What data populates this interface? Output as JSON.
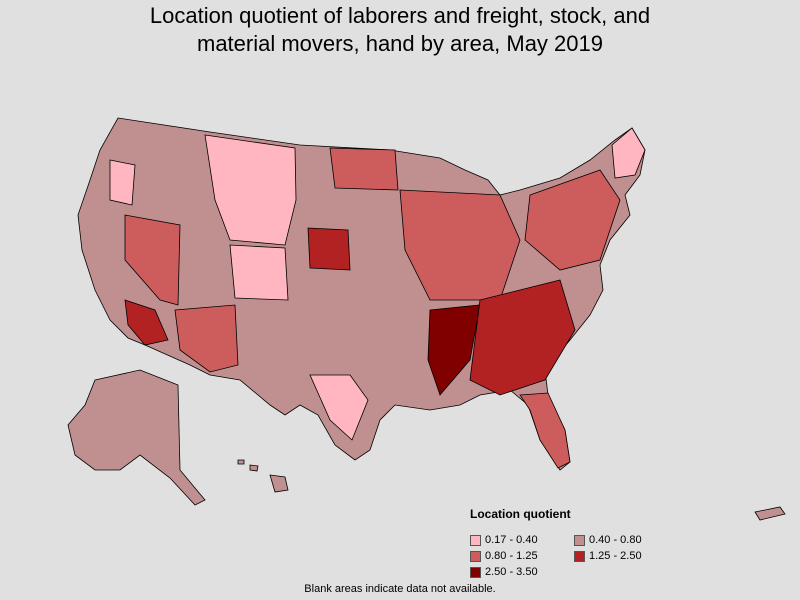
{
  "title_line1": "Location quotient of laborers and freight, stock, and",
  "title_line2": "material movers, hand by area, May 2019",
  "legend": {
    "title": "Location quotient",
    "items": [
      {
        "label": "0.17 - 0.40",
        "color": "#ffb6c1"
      },
      {
        "label": "0.40 - 0.80",
        "color": "#c09090"
      },
      {
        "label": "0.80 - 1.25",
        "color": "#cd5c5c"
      },
      {
        "label": "1.25 - 2.50",
        "color": "#b22222"
      },
      {
        "label": "2.50 - 3.50",
        "color": "#800000"
      }
    ]
  },
  "footnote": "Blank areas indicate data not available.",
  "colors": {
    "background": "#e0e0e0",
    "border": "#000000"
  }
}
